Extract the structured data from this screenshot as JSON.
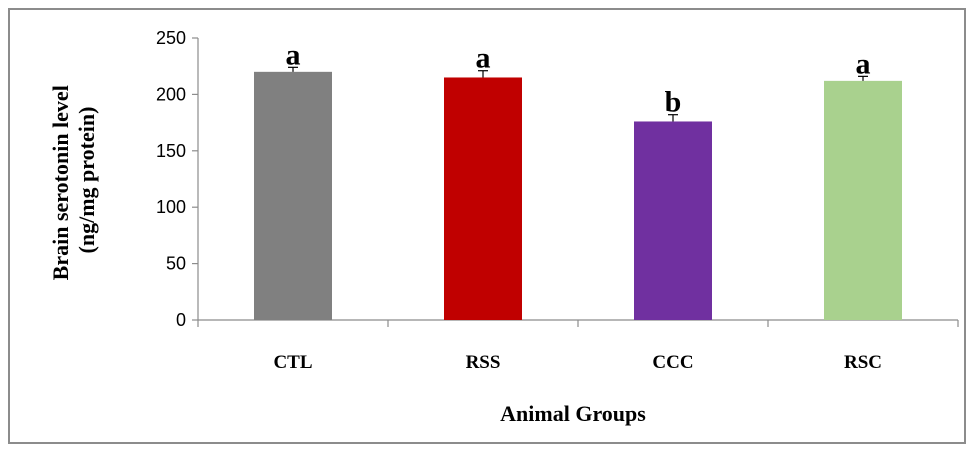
{
  "chart_data": {
    "type": "bar",
    "categories": [
      "CTL",
      "RSS",
      "CCC",
      "RSC"
    ],
    "values": [
      220,
      215,
      176,
      212
    ],
    "errors": [
      4,
      6,
      6,
      4
    ],
    "significance": [
      "a",
      "a",
      "b",
      "a"
    ],
    "colors": [
      "#808080",
      "#c00000",
      "#7030a0",
      "#a9d18e"
    ],
    "ylim": [
      0,
      250
    ],
    "yticks": [
      0,
      50,
      100,
      150,
      200,
      250
    ],
    "xlabel": "Animal Groups",
    "ylabel_line1": "Brain serotonin level",
    "ylabel_line2": "(ng/mg protein)",
    "grid": false,
    "legend": "none"
  }
}
